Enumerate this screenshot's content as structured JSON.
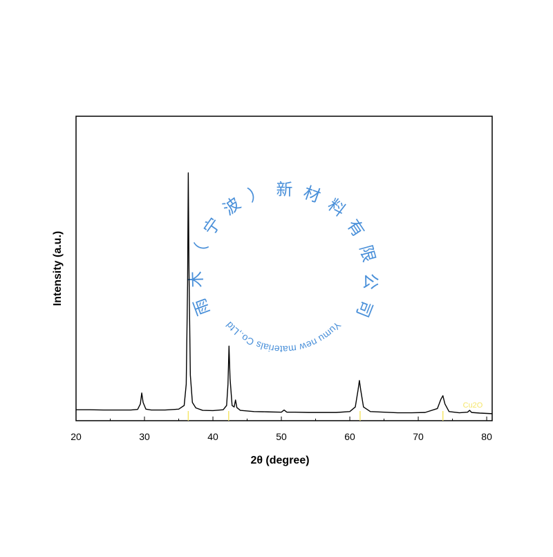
{
  "chart_data": {
    "type": "line",
    "x_label": "2θ (degree)",
    "y_label": "Intensity (a.u.)",
    "xlim": [
      20,
      80.8
    ],
    "ylim": [
      0,
      100
    ],
    "xticks": [
      20,
      30,
      40,
      50,
      60,
      70,
      80
    ],
    "x": [
      20,
      22,
      24,
      26,
      28,
      29,
      29.4,
      29.6,
      29.8,
      30.2,
      31,
      33,
      35,
      35.8,
      36.1,
      36.3,
      36.4,
      36.5,
      36.7,
      37,
      37.5,
      38.5,
      40,
      41.5,
      42,
      42.2,
      42.35,
      42.5,
      42.8,
      43.1,
      43.3,
      43.5,
      44,
      46,
      48,
      50,
      50.4,
      50.8,
      52,
      54,
      56,
      58,
      60,
      60.8,
      61.2,
      61.4,
      61.6,
      62,
      63,
      65,
      67,
      69,
      71,
      72.8,
      73.3,
      73.6,
      73.9,
      74.5,
      76,
      77.2,
      77.5,
      77.8,
      79,
      80.8
    ],
    "series": [
      {
        "color": "#000000",
        "values": [
          3.6,
          3.6,
          3.5,
          3.5,
          3.5,
          3.7,
          5.5,
          9.1,
          6,
          3.8,
          3.5,
          3.5,
          3.8,
          5,
          12,
          45,
          81.4,
          50,
          15,
          6,
          4.2,
          3.4,
          3.3,
          3.6,
          5,
          12,
          24.5,
          14,
          5,
          4.5,
          6.8,
          4.3,
          3.4,
          3,
          2.9,
          2.8,
          3.5,
          2.8,
          2.8,
          2.7,
          2.7,
          2.7,
          3,
          4.5,
          10,
          13.2,
          10,
          4.5,
          3,
          2.8,
          2.6,
          2.6,
          2.7,
          4,
          7,
          8.2,
          5.5,
          3,
          2.6,
          2.8,
          3.4,
          2.7,
          2.5,
          2.3
        ]
      }
    ],
    "reference": {
      "name": "Cu2O",
      "color": "#f5e66a",
      "positions": [
        36.4,
        42.3,
        61.5,
        73.6
      ]
    },
    "watermark": {
      "cn": "雨木（宁波）新材料有限公司",
      "en": "Yumu new materials Co.,Ltd",
      "color": "#4a90d9"
    }
  }
}
